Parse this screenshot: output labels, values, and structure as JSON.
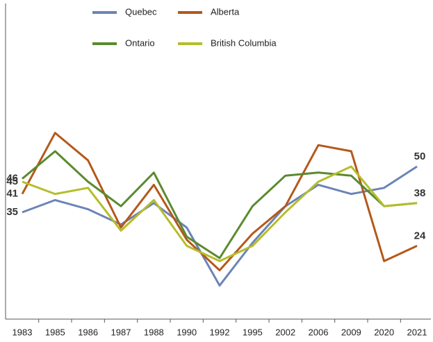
{
  "chart_data": {
    "type": "line",
    "categories": [
      "1983",
      "1985",
      "1986",
      "1987",
      "1988",
      "1990",
      "1992",
      "1995",
      "2002",
      "2006",
      "2009",
      "2020",
      "2021"
    ],
    "series": [
      {
        "name": "Quebec",
        "color": "#6b84b8",
        "values": [
          35,
          39,
          36,
          31,
          38,
          30,
          11,
          25,
          37,
          44,
          41,
          43,
          50
        ],
        "data_labels": [
          "first",
          "last"
        ]
      },
      {
        "name": "Alberta",
        "color": "#b5581a",
        "values": [
          41,
          61,
          52,
          30,
          44,
          26,
          16,
          28,
          37,
          57,
          55,
          19,
          24
        ],
        "data_labels": [
          "first",
          "last"
        ]
      },
      {
        "name": "Ontario",
        "color": "#5a8a2e",
        "values": [
          46,
          55,
          45,
          37,
          48,
          27,
          20,
          37,
          47,
          48,
          47,
          37,
          38
        ],
        "data_labels": [
          "first"
        ]
      },
      {
        "name": "British Columbia",
        "color": "#b5bd2a",
        "values": [
          45,
          41,
          43,
          29,
          39,
          24,
          19,
          24,
          35,
          45,
          50,
          37,
          38
        ],
        "data_labels": [
          "first",
          "last"
        ]
      }
    ],
    "ylim": [
      0,
      100
    ],
    "grid": false,
    "legend": "top"
  }
}
